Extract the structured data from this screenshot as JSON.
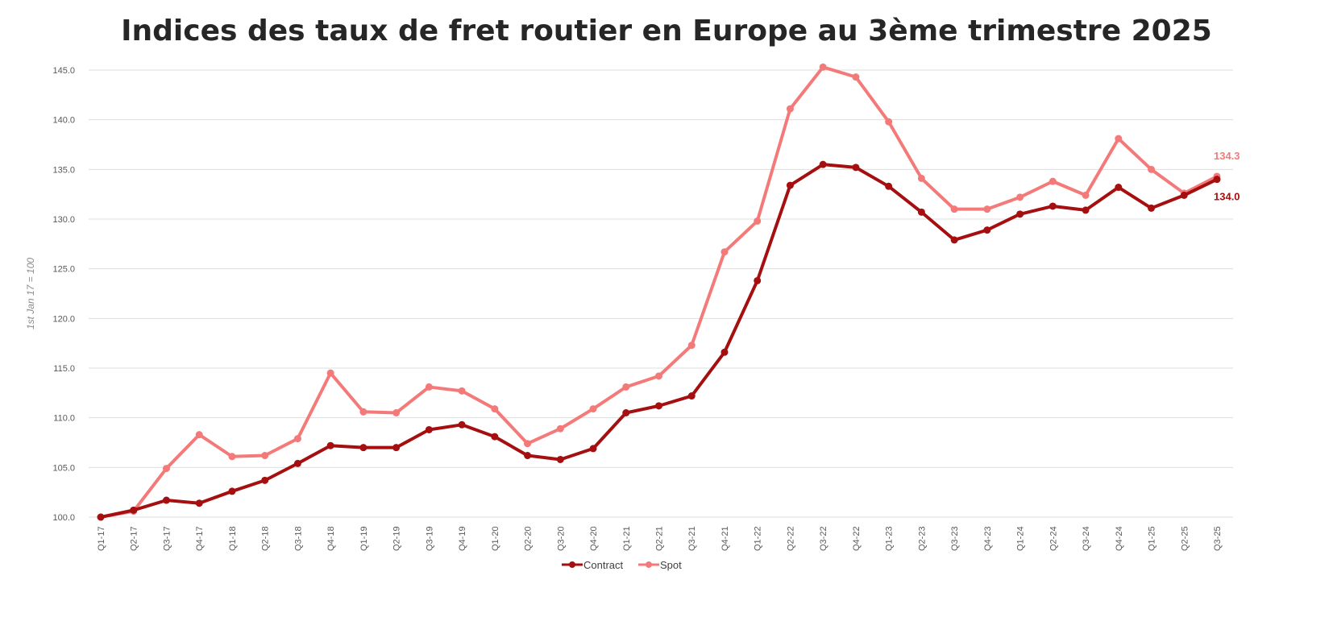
{
  "chart_data": {
    "type": "line",
    "title": "Indices des taux de fret routier en Europe au 3ème trimestre 2025",
    "xlabel": "",
    "ylabel": "1st Jan 17 = 100",
    "ylim": [
      100,
      145
    ],
    "yticks": [
      "100.0",
      "105.0",
      "110.0",
      "115.0",
      "120.0",
      "125.0",
      "130.0",
      "135.0",
      "140.0",
      "145.0"
    ],
    "grid": true,
    "legend_position": "bottom",
    "categories": [
      "Q1-17",
      "Q2-17",
      "Q3-17",
      "Q4-17",
      "Q1-18",
      "Q2-18",
      "Q3-18",
      "Q4-18",
      "Q1-19",
      "Q2-19",
      "Q3-19",
      "Q4-19",
      "Q1-20",
      "Q2-20",
      "Q3-20",
      "Q4-20",
      "Q1-21",
      "Q2-21",
      "Q3-21",
      "Q4-21",
      "Q1-22",
      "Q2-22",
      "Q3-22",
      "Q4-22",
      "Q1-23",
      "Q2-23",
      "Q3-23",
      "Q4-23",
      "Q1-24",
      "Q2-24",
      "Q3-24",
      "Q4-24",
      "Q1-25",
      "Q2-25",
      "Q3-25"
    ],
    "series": [
      {
        "name": "Contract",
        "color": "#a50f0f",
        "values": [
          100.0,
          100.7,
          101.7,
          101.4,
          102.6,
          103.7,
          105.4,
          107.2,
          107.0,
          107.0,
          108.8,
          109.3,
          108.1,
          106.2,
          105.8,
          106.9,
          110.5,
          111.2,
          112.2,
          116.6,
          123.8,
          133.4,
          135.5,
          135.2,
          133.3,
          130.7,
          127.9,
          128.9,
          130.5,
          131.3,
          130.9,
          133.2,
          131.1,
          132.4,
          134.0
        ],
        "end_label": "134.0"
      },
      {
        "name": "Spot",
        "color": "#f47a7a",
        "values": [
          100.0,
          100.6,
          104.9,
          108.3,
          106.1,
          106.2,
          107.9,
          114.5,
          110.6,
          110.5,
          113.1,
          112.7,
          110.9,
          107.4,
          108.9,
          110.9,
          113.1,
          114.2,
          117.3,
          126.7,
          129.8,
          141.1,
          145.3,
          144.3,
          139.8,
          134.1,
          131.0,
          131.0,
          132.2,
          133.8,
          132.4,
          138.1,
          135.0,
          132.6,
          134.3
        ],
        "end_label": "134.3"
      }
    ]
  }
}
